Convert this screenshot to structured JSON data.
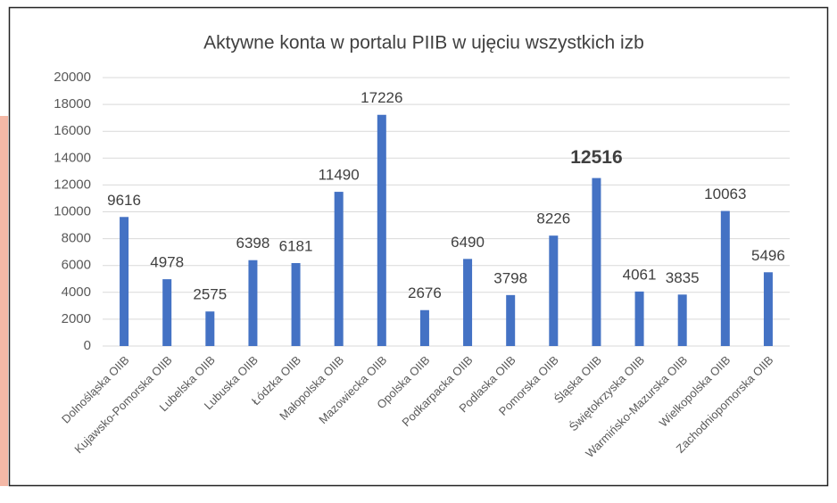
{
  "chart_data": {
    "type": "bar",
    "title": "Aktywne konta w portalu PIIB w ujęciu wszystkich izb",
    "categories": [
      "Dolnośląska OIIB",
      "Kujawsko-Pomorska OIIB",
      "Lubelska OIIB",
      "Lubuska OIIB",
      "Łódzka OIIB",
      "Małopolska OIIB",
      "Mazowiecka OIIB",
      "Opolska OIIB",
      "Podkarpacka OIIB",
      "Podlaska OIIB",
      "Pomorska OIIB",
      "Śląska OIIB",
      "Świętokrzyska OIIB",
      "Warmińsko-Mazurska OIIB",
      "Wielkopolska OIIB",
      "Zachodniopomorska OIIB"
    ],
    "values": [
      9616,
      4978,
      2575,
      6398,
      6181,
      11490,
      17226,
      2676,
      6490,
      3798,
      8226,
      12516,
      4061,
      3835,
      10063,
      5496
    ],
    "color": "#4472c4",
    "highlight": 11,
    "ylim": [
      0,
      20000
    ],
    "yticks": [
      0,
      2000,
      4000,
      6000,
      8000,
      10000,
      12000,
      14000,
      16000,
      18000,
      20000
    ],
    "grid": true
  }
}
